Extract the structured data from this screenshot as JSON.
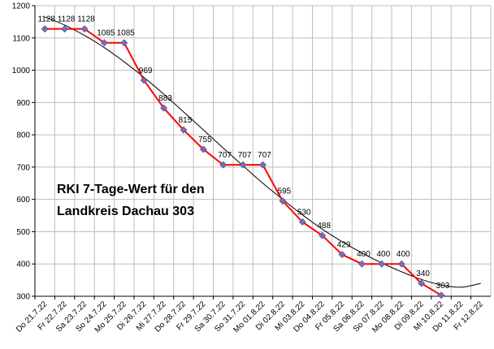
{
  "chart_data": {
    "type": "line",
    "annotation": [
      "RKI 7-Tage-Wert für den",
      "Landkreis Dachau 303"
    ],
    "x": [
      "Do 21.7.22",
      "Fr 22.7.22",
      "Sa 23.7.22",
      "So 24.7.22",
      "Mo 25.7.22",
      "Di 26.7.22",
      "Mi 27.7.22",
      "Do 28.7.22",
      "Fr 29.7.22",
      "Sa 30.7.22",
      "So 31.7.22",
      "Mo 01.8.22",
      "Di 02.8.22",
      "Mi 03.8.22",
      "Do 04.8.22",
      "Fr 05.8.22",
      "Sa 06.8.22",
      "So 07.8.22",
      "Mo 08.8.22",
      "Di 09.8.22",
      "Mi 10.8.22",
      "Do 11.8.22",
      "Fr 12.8.22"
    ],
    "series": [
      {
        "values": [
          1128,
          1128,
          1128,
          1085,
          1085,
          969,
          883,
          815,
          755,
          707,
          707,
          707,
          595,
          530,
          488,
          429,
          400,
          400,
          400,
          340,
          303,
          null,
          null
        ],
        "color": "#ff0000",
        "marker_color": "#7a6fb5"
      }
    ],
    "trendline": {
      "type": "polynomial",
      "color": "#000000",
      "values": [
        1165,
        1140,
        1108,
        1070,
        1026,
        978,
        926,
        871,
        815,
        759,
        704,
        650,
        600,
        552,
        508,
        469,
        434,
        403,
        376,
        352,
        335,
        328,
        340
      ]
    },
    "ylim": [
      300,
      1200
    ],
    "yticks": [
      "300",
      "400",
      "500",
      "600",
      "700",
      "800",
      "900",
      "1000",
      "1100",
      "1200"
    ],
    "grid": true,
    "legend": "none"
  }
}
